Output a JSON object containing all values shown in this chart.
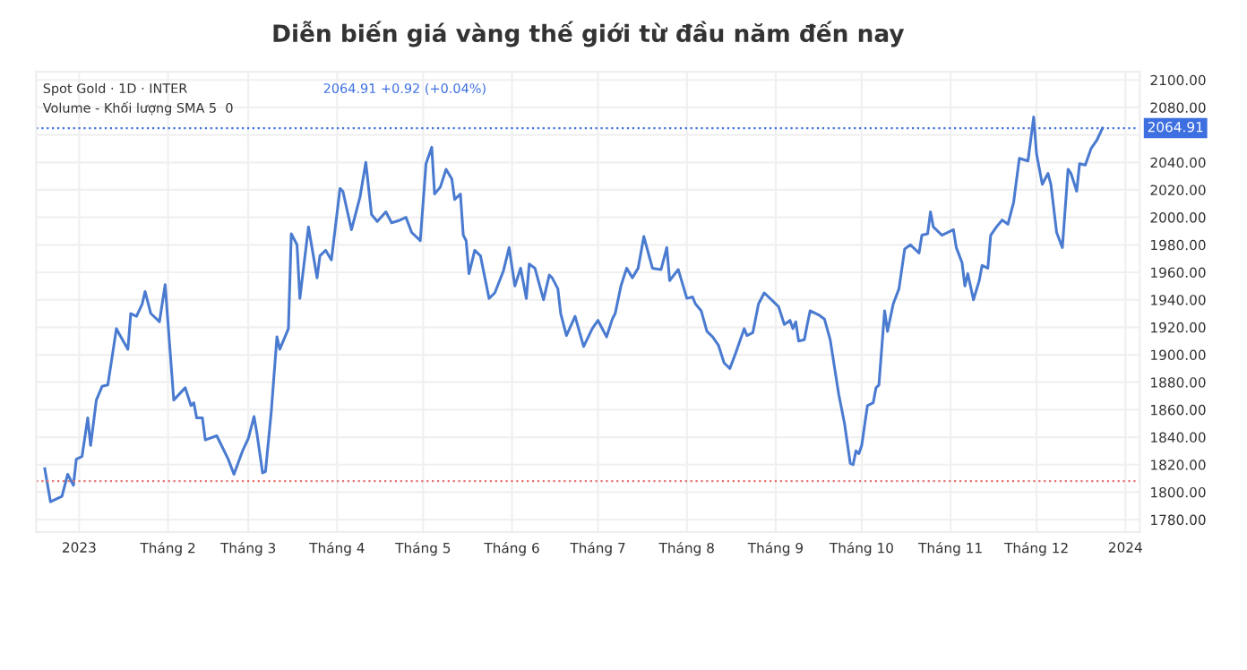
{
  "chart_data": {
    "type": "line",
    "title": "Diễn biến giá vàng thế giới từ đầu năm đến nay",
    "annotations": [
      "Spot Gold · 1D · INTER",
      "2064.91 +0.92 (+0.04%)",
      "Volume - Khối lượng SMA 5  0"
    ],
    "x": [
      "2022-12-20",
      "2022-12-22",
      "2022-12-26",
      "2022-12-28",
      "2022-12-30",
      "2022-12-31",
      "2023-01-02",
      "2023-01-04",
      "2023-01-05",
      "2023-01-07",
      "2023-01-09",
      "2023-01-11",
      "2023-01-14",
      "2023-01-15",
      "2023-01-18",
      "2023-01-19",
      "2023-01-21",
      "2023-01-23",
      "2023-01-24",
      "2023-01-26",
      "2023-01-29",
      "2023-01-31",
      "2023-02-03",
      "2023-02-07",
      "2023-02-09",
      "2023-02-10",
      "2023-02-11",
      "2023-02-13",
      "2023-02-14",
      "2023-02-18",
      "2023-02-22",
      "2023-02-24",
      "2023-02-27",
      "2023-03-01",
      "2023-03-03",
      "2023-03-04",
      "2023-03-06",
      "2023-03-07",
      "2023-03-09",
      "2023-03-11",
      "2023-03-12",
      "2023-03-15",
      "2023-03-16",
      "2023-03-18",
      "2023-03-19",
      "2023-03-22",
      "2023-03-25",
      "2023-03-26",
      "2023-03-28",
      "2023-03-30",
      "2023-04-02",
      "2023-04-03",
      "2023-04-06",
      "2023-04-09",
      "2023-04-11",
      "2023-04-13",
      "2023-04-15",
      "2023-04-18",
      "2023-04-20",
      "2023-04-23",
      "2023-04-25",
      "2023-04-27",
      "2023-04-30",
      "2023-05-02",
      "2023-05-04",
      "2023-05-05",
      "2023-05-07",
      "2023-05-09",
      "2023-05-11",
      "2023-05-12",
      "2023-05-14",
      "2023-05-15",
      "2023-05-16",
      "2023-05-17",
      "2023-05-19",
      "2023-05-21",
      "2023-05-24",
      "2023-05-26",
      "2023-05-29",
      "2023-05-31",
      "2023-06-02",
      "2023-06-04",
      "2023-06-06",
      "2023-06-07",
      "2023-06-09",
      "2023-06-12",
      "2023-06-14",
      "2023-06-15",
      "2023-06-17",
      "2023-06-18",
      "2023-06-20",
      "2023-06-23",
      "2023-06-26",
      "2023-06-29",
      "2023-07-01",
      "2023-07-04",
      "2023-07-06",
      "2023-07-07",
      "2023-07-09",
      "2023-07-11",
      "2023-07-13",
      "2023-07-15",
      "2023-07-17",
      "2023-07-20",
      "2023-07-23",
      "2023-07-25",
      "2023-07-26",
      "2023-07-29",
      "2023-08-01",
      "2023-08-03",
      "2023-08-04",
      "2023-08-06",
      "2023-08-08",
      "2023-08-10",
      "2023-08-12",
      "2023-08-14",
      "2023-08-16",
      "2023-08-18",
      "2023-08-21",
      "2023-08-22",
      "2023-08-24",
      "2023-08-26",
      "2023-08-28",
      "2023-08-31",
      "2023-09-02",
      "2023-09-04",
      "2023-09-06",
      "2023-09-07",
      "2023-09-08",
      "2023-09-09",
      "2023-09-11",
      "2023-09-12",
      "2023-09-13",
      "2023-09-16",
      "2023-09-18",
      "2023-09-20",
      "2023-09-23",
      "2023-09-25",
      "2023-09-27",
      "2023-09-28",
      "2023-09-29",
      "2023-09-30",
      "2023-10-01",
      "2023-10-03",
      "2023-10-05",
      "2023-10-06",
      "2023-10-07",
      "2023-10-09",
      "2023-10-10",
      "2023-10-12",
      "2023-10-14",
      "2023-10-16",
      "2023-10-18",
      "2023-10-21",
      "2023-10-22",
      "2023-10-24",
      "2023-10-25",
      "2023-10-26",
      "2023-10-29",
      "2023-11-02",
      "2023-11-03",
      "2023-11-05",
      "2023-11-06",
      "2023-11-07",
      "2023-11-09",
      "2023-11-11",
      "2023-11-12",
      "2023-11-14",
      "2023-11-15",
      "2023-11-17",
      "2023-11-19",
      "2023-11-21",
      "2023-11-23",
      "2023-11-25",
      "2023-11-28",
      "2023-11-30",
      "2023-12-01",
      "2023-12-03",
      "2023-12-05",
      "2023-12-06",
      "2023-12-08",
      "2023-12-10",
      "2023-12-12",
      "2023-12-13",
      "2023-12-15",
      "2023-12-16",
      "2023-12-18",
      "2023-12-20",
      "2023-12-22",
      "2023-12-24"
    ],
    "series": [
      {
        "color": "#4a7bd0",
        "values": [
          1817,
          1793,
          1797,
          1813,
          1805,
          1824,
          1826,
          1854,
          1834,
          1867,
          1877,
          1878,
          1919,
          1915,
          1904,
          1930,
          1928,
          1937,
          1946,
          1930,
          1924,
          1951,
          1867,
          1876,
          1863,
          1865,
          1854,
          1854,
          1838,
          1841,
          1824,
          1813,
          1830,
          1839,
          1855,
          1843,
          1814,
          1815,
          1858,
          1913,
          1904,
          1919,
          1988,
          1980,
          1941,
          1993,
          1956,
          1972,
          1976,
          1969,
          2021,
          2019,
          1991,
          2015,
          2040,
          2002,
          1997,
          2004,
          1996,
          1998,
          2000,
          1989,
          1983,
          2039,
          2051,
          2017,
          2022,
          2035,
          2028,
          2013,
          2017,
          1987,
          1983,
          1959,
          1976,
          1972,
          1941,
          1945,
          1961,
          1978,
          1950,
          1963,
          1941,
          1966,
          1963,
          1940,
          1958,
          1956,
          1948,
          1930,
          1914,
          1928,
          1906,
          1919,
          1925,
          1913,
          1926,
          1930,
          1950,
          1963,
          1956,
          1963,
          1986,
          1963,
          1962,
          1978,
          1954,
          1962,
          1941,
          1942,
          1937,
          1932,
          1917,
          1913,
          1907,
          1894,
          1890,
          1901,
          1919,
          1914,
          1916,
          1937,
          1945,
          1939,
          1935,
          1922,
          1925,
          1919,
          1924,
          1910,
          1911,
          1922,
          1932,
          1929,
          1926,
          1911,
          1871,
          1850,
          1821,
          1820,
          1830,
          1828,
          1834,
          1863,
          1865,
          1876,
          1878,
          1932,
          1917,
          1937,
          1948,
          1977,
          1980,
          1974,
          1987,
          1988,
          2004,
          1993,
          1987,
          1991,
          1978,
          1967,
          1950,
          1959,
          1940,
          1954,
          1965,
          1963,
          1987,
          1993,
          1998,
          1995,
          2011,
          2043,
          2041,
          2073,
          2046,
          2024,
          2032,
          2024,
          1989,
          1978,
          2035,
          2032,
          2019,
          2039,
          2038,
          2050,
          2056,
          2065
        ]
      }
    ],
    "marker": "none",
    "line_style": "solid",
    "xlim": [
      "2022-12-17",
      "2024-01-06"
    ],
    "xticks": [
      {
        "value": "2023-01-01",
        "label": "2023"
      },
      {
        "value": "2023-02-01",
        "label": "Tháng 2"
      },
      {
        "value": "2023-03-01",
        "label": "Tháng 3"
      },
      {
        "value": "2023-04-01",
        "label": "Tháng 4"
      },
      {
        "value": "2023-05-01",
        "label": "Tháng 5"
      },
      {
        "value": "2023-06-01",
        "label": "Tháng 6"
      },
      {
        "value": "2023-07-01",
        "label": "Tháng 7"
      },
      {
        "value": "2023-08-01",
        "label": "Tháng 8"
      },
      {
        "value": "2023-09-01",
        "label": "Tháng 9"
      },
      {
        "value": "2023-10-01",
        "label": "Tháng 10"
      },
      {
        "value": "2023-11-01",
        "label": "Tháng 11"
      },
      {
        "value": "2023-12-01",
        "label": "Tháng 12"
      },
      {
        "value": "2024-01-01",
        "label": "2024"
      }
    ],
    "ylim": [
      1771,
      2106
    ],
    "yticks": [
      {
        "value": 1780,
        "label": "1780.00"
      },
      {
        "value": 1800,
        "label": "1800.00"
      },
      {
        "value": 1820,
        "label": "1820.00"
      },
      {
        "value": 1840,
        "label": "1840.00"
      },
      {
        "value": 1860,
        "label": "1860.00"
      },
      {
        "value": 1880,
        "label": "1880.00"
      },
      {
        "value": 1900,
        "label": "1900.00"
      },
      {
        "value": 1920,
        "label": "1920.00"
      },
      {
        "value": 1940,
        "label": "1940.00"
      },
      {
        "value": 1960,
        "label": "1960.00"
      },
      {
        "value": 1980,
        "label": "1980.00"
      },
      {
        "value": 2000,
        "label": "2000.00"
      },
      {
        "value": 2020,
        "label": "2020.00"
      },
      {
        "value": 2040,
        "label": "2040.00"
      },
      {
        "value": 2060,
        "label": null
      },
      {
        "value": 2080,
        "label": "2080.00"
      },
      {
        "value": 2100,
        "label": "2100.00"
      }
    ],
    "ref_lines": [
      {
        "axis": "y",
        "value": 1808,
        "color": "#e57373",
        "line_style": "dotted"
      },
      {
        "axis": "y",
        "value": 2064.91,
        "label": "2064.91",
        "color": "#3d6fe0",
        "line_style": "dotted"
      }
    ],
    "grid": true
  }
}
